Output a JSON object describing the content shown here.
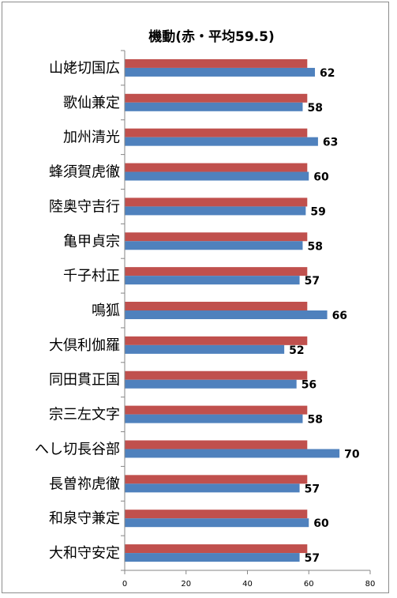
{
  "chart_data": {
    "type": "bar",
    "orientation": "horizontal",
    "title": "機動(赤・平均59.5)",
    "categories": [
      "山姥切国広",
      "歌仙兼定",
      "加州清光",
      "蜂須賀虎徹",
      "陸奥守吉行",
      "亀甲貞宗",
      "千子村正",
      "鳴狐",
      "大倶利伽羅",
      "同田貫正国",
      "宗三左文字",
      "へし切長谷部",
      "長曽祢虎徹",
      "和泉守兼定",
      "大和守安定"
    ],
    "series": [
      {
        "values": [
          59.5,
          59.5,
          59.5,
          59.5,
          59.5,
          59.5,
          59.5,
          59.5,
          59.5,
          59.5,
          59.5,
          59.5,
          59.5,
          59.5,
          59.5
        ],
        "color": "#c0504d"
      },
      {
        "values": [
          62,
          58,
          63,
          60,
          59,
          58,
          57,
          66,
          52,
          56,
          58,
          70,
          57,
          60,
          57
        ],
        "color": "#4f81bd"
      }
    ],
    "data_labels": [
      "62",
      "58",
      "63",
      "60",
      "59",
      "58",
      "57",
      "66",
      "52",
      "56",
      "58",
      "70",
      "57",
      "60",
      "57"
    ],
    "x_ticks": [
      "0",
      "20",
      "40",
      "60",
      "80"
    ],
    "xlim": [
      0,
      80
    ],
    "grid": false,
    "legend": "none"
  }
}
